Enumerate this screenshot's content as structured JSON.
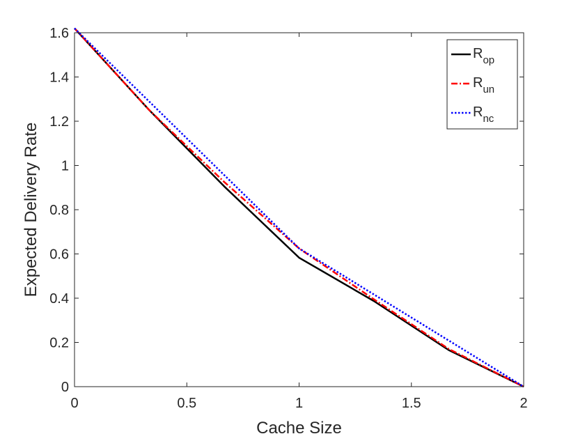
{
  "chart_data": {
    "type": "line",
    "title": "",
    "xlabel": "Cache Size",
    "ylabel": "Expected Delivery Rate",
    "xlim": [
      0,
      2
    ],
    "ylim": [
      0,
      1.6
    ],
    "xticks": [
      "0",
      "0.5",
      "1",
      "1.5",
      "2"
    ],
    "xtick_values": [
      0,
      0.5,
      1,
      1.5,
      2
    ],
    "yticks": [
      "0",
      "0.2",
      "0.4",
      "0.6",
      "0.8",
      "1",
      "1.2",
      "1.4",
      "1.6"
    ],
    "ytick_values": [
      0,
      0.2,
      0.4,
      0.6,
      0.8,
      1,
      1.2,
      1.4,
      1.6
    ],
    "grid": false,
    "legend_position": "top-right",
    "series": [
      {
        "name": "R_op",
        "label_main": "R",
        "label_sub": "op",
        "color": "#000000",
        "style": "solid",
        "x": [
          0,
          0.333,
          0.667,
          1.0,
          1.333,
          1.667,
          2.0
        ],
        "y": [
          1.62,
          1.25,
          0.905,
          0.583,
          0.387,
          0.165,
          0.0
        ]
      },
      {
        "name": "R_un",
        "label_main": "R",
        "label_sub": "un",
        "color": "#ff0000",
        "style": "dash-dot",
        "x": [
          0,
          0.333,
          0.667,
          1.0,
          1.333,
          1.667,
          2.0
        ],
        "y": [
          1.62,
          1.25,
          0.925,
          0.625,
          0.395,
          0.17,
          0.0
        ]
      },
      {
        "name": "R_nc",
        "label_main": "R",
        "label_sub": "nc",
        "color": "#0000ff",
        "style": "dotted",
        "x": [
          0,
          1.0,
          2.0
        ],
        "y": [
          1.62,
          0.625,
          0.0
        ]
      }
    ]
  }
}
